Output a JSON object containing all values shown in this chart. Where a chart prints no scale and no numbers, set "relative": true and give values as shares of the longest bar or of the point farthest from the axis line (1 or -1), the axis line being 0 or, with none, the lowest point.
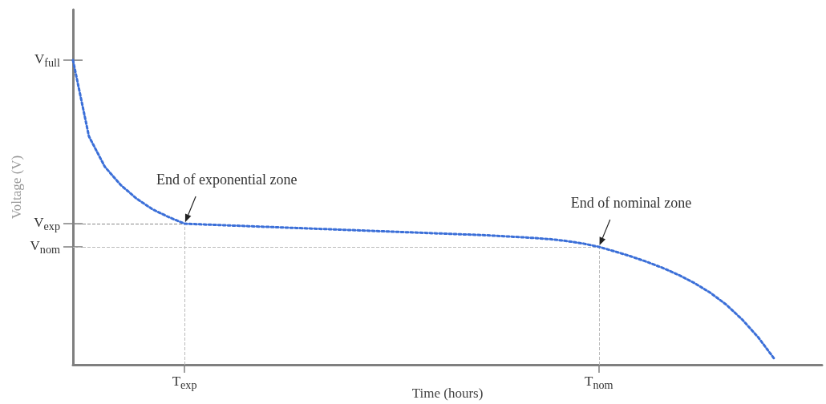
{
  "chart_data": {
    "type": "line",
    "xlabel": "Time (hours)",
    "ylabel": "Voltage (V)",
    "relative": true,
    "categories": [
      null,
      null,
      null,
      null,
      null,
      null,
      null,
      "T$_{exp}$",
      null,
      null,
      null,
      null,
      null,
      null,
      null,
      null,
      null,
      null,
      null,
      null,
      null,
      null,
      null,
      null,
      null,
      null,
      null,
      null,
      null,
      null,
      null,
      null,
      null,
      "T$_{nom}$",
      null,
      null,
      null,
      null,
      null,
      null,
      null,
      null,
      null,
      null,
      null,
      null,
      null,
      null
    ],
    "series": [
      {
        "color": "#3b6fd8",
        "values": [
          1,
          0.75,
          0.65,
          0.59,
          0.545,
          0.51,
          0.485,
          0.463,
          0.461,
          0.459,
          0.457,
          0.455,
          0.453,
          0.451,
          0.449,
          0.447,
          0.445,
          0.443,
          0.441,
          0.439,
          0.437,
          0.435,
          0.433,
          0.431,
          0.429,
          0.427,
          0.425,
          0.422,
          0.419,
          0.416,
          0.412,
          0.406,
          0.398,
          0.387,
          0.372,
          0.356,
          0.338,
          0.318,
          0.295,
          0.268,
          0.236,
          0.197,
          0.148,
          0.09,
          0.02,
          null,
          null,
          null
        ]
      }
    ],
    "line_style": "dotted",
    "marker": "none",
    "ref_lines": [
      {
        "axis": "y",
        "value": 0.463,
        "label": "V$_{exp}$",
        "color": "#888888",
        "line_style": "dashed"
      },
      {
        "axis": "y",
        "value": 0.387,
        "label": "V$_{nom}$",
        "color": "#bbbbbb",
        "line_style": "dashed"
      },
      {
        "axis": "x",
        "value": "T$_{exp}$",
        "color": "#bbbbbb",
        "line_style": "dashed"
      },
      {
        "axis": "x",
        "value": "T$_{nom}$",
        "color": "#bbbbbb",
        "line_style": "dashed"
      }
    ],
    "annotations": [
      "V$_{full}$",
      {
        "text": "End of exponential zone",
        "x": "T$_{exp}$",
        "y": 0.463
      },
      {
        "text": "End of nominal zone",
        "x": "T$_{nom}$",
        "y": 0.387
      }
    ]
  }
}
